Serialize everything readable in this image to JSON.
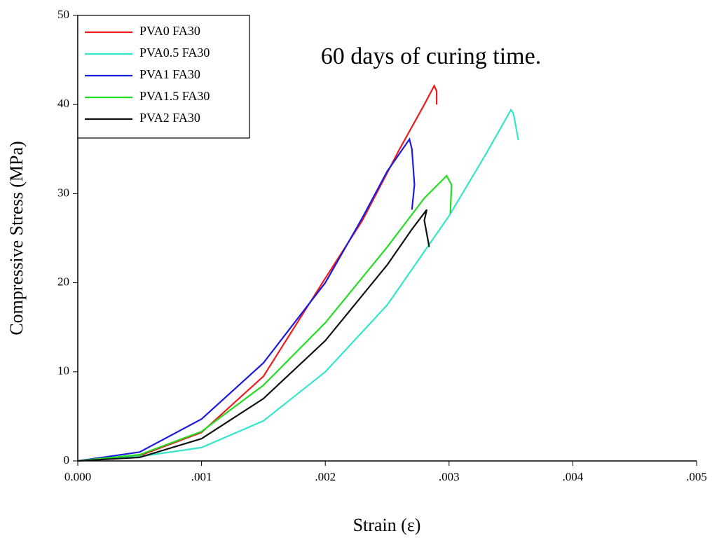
{
  "chart_data": {
    "type": "line",
    "annotation": "60 days of curing time.",
    "xlabel": "Strain (ε)",
    "ylabel": "Compressive Stress (MPa)",
    "xlim": [
      0,
      0.005
    ],
    "xticks": [
      {
        "value": 0,
        "label": "0.000"
      },
      {
        "value": 0.001,
        "label": ".001"
      },
      {
        "value": 0.002,
        "label": ".002"
      },
      {
        "value": 0.003,
        "label": ".003"
      },
      {
        "value": 0.004,
        "label": ".004"
      },
      {
        "value": 0.005,
        "label": ".005"
      }
    ],
    "ylim": [
      0,
      50
    ],
    "yticks": [
      0,
      10,
      20,
      30,
      40,
      50
    ],
    "legend": "upper left",
    "series": [
      {
        "name": "PVA0 FA30",
        "color": "#ee1c1c",
        "x": [
          0,
          0.0005,
          0.001,
          0.0015,
          0.002,
          0.0023,
          0.0026,
          0.0028,
          0.00288,
          0.0029,
          0.0029
        ],
        "values": [
          0,
          0.6,
          3.2,
          9.5,
          20.5,
          27,
          35,
          40,
          42.1,
          41.5,
          40
        ]
      },
      {
        "name": "PVA0.5 FA30",
        "color": "#33e6cc",
        "x": [
          0,
          0.0005,
          0.001,
          0.0015,
          0.002,
          0.0025,
          0.003,
          0.0033,
          0.0035,
          0.00352,
          0.00356
        ],
        "values": [
          0,
          0.5,
          1.5,
          4.5,
          10,
          17.5,
          27.5,
          34.5,
          39.4,
          39,
          36
        ]
      },
      {
        "name": "PVA1 FA30",
        "color": "#1c1cdd",
        "x": [
          0,
          0.0005,
          0.001,
          0.0015,
          0.002,
          0.0023,
          0.0025,
          0.00268,
          0.0027,
          0.00272,
          0.0027
        ],
        "values": [
          0,
          1,
          4.7,
          11,
          20,
          27.3,
          32.5,
          36.1,
          35,
          31,
          28.2
        ]
      },
      {
        "name": "PVA1.5 FA30",
        "color": "#22dd22",
        "x": [
          0,
          0.0005,
          0.001,
          0.0015,
          0.002,
          0.0025,
          0.0028,
          0.00298,
          0.00302,
          0.00301
        ],
        "values": [
          0,
          0.7,
          3.3,
          8.5,
          15.5,
          24,
          29.5,
          32,
          31,
          27.8
        ]
      },
      {
        "name": "PVA2 FA30",
        "color": "#111111",
        "x": [
          0,
          0.0005,
          0.001,
          0.0015,
          0.002,
          0.0025,
          0.0027,
          0.00282,
          0.0028,
          0.00284
        ],
        "values": [
          0,
          0.4,
          2.5,
          7,
          13.5,
          22,
          26,
          28.2,
          27,
          24
        ]
      }
    ]
  }
}
